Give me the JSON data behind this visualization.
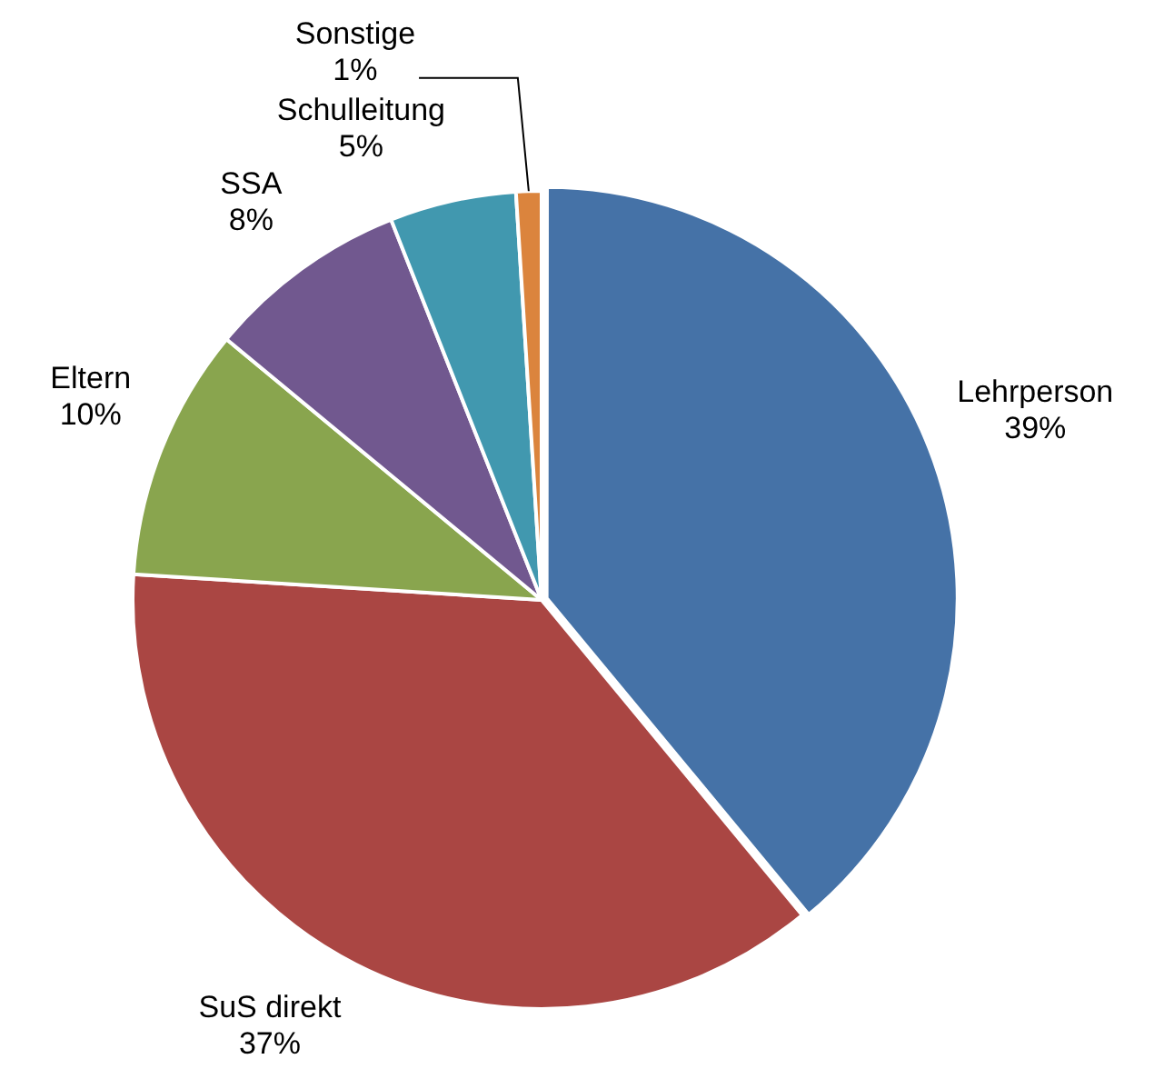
{
  "chart_data": {
    "type": "pie",
    "categories": [
      "Lehrperson",
      "SuS direkt",
      "Eltern",
      "SSA",
      "Schulleitung",
      "Sonstige"
    ],
    "values": [
      39,
      37,
      10,
      8,
      5,
      1
    ],
    "colors": [
      "#4572a7",
      "#aa4643",
      "#89a54e",
      "#71588f",
      "#4198af",
      "#db843d"
    ],
    "value_labels": [
      "39%",
      "37%",
      "10%",
      "8%",
      "5%",
      "1%"
    ],
    "legend": false
  }
}
